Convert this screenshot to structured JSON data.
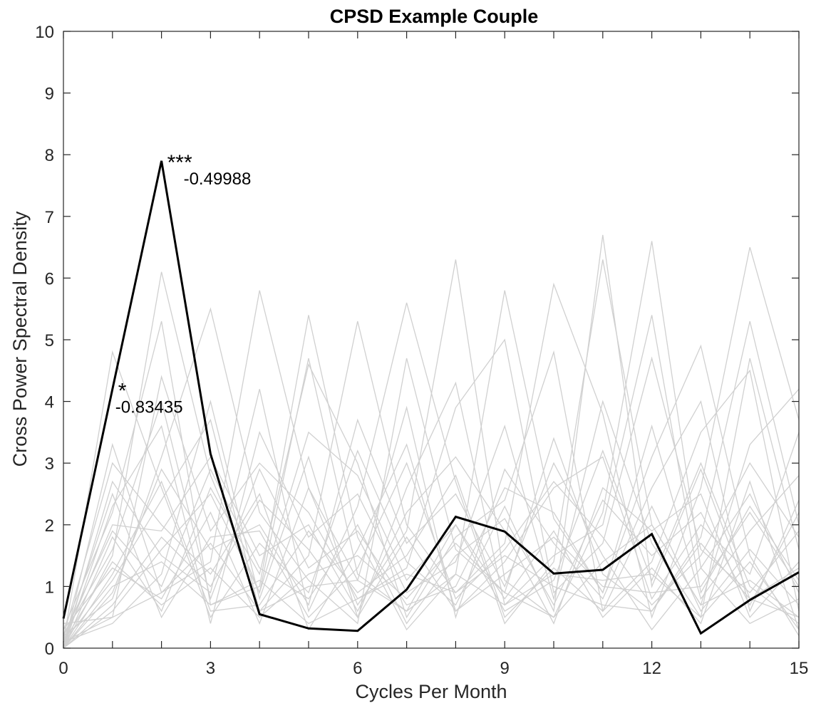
{
  "chart_data": {
    "type": "line",
    "title": "CPSD Example Couple",
    "xlabel": "Cycles Per Month",
    "ylabel": "Cross Power Spectral Density",
    "xlim": [
      0,
      15
    ],
    "ylim": [
      0,
      10
    ],
    "xticks": [
      "0",
      "3",
      "6",
      "9",
      "12",
      "15"
    ],
    "yticks": [
      "0",
      "1",
      "2",
      "3",
      "4",
      "5",
      "6",
      "7",
      "8",
      "9",
      "10"
    ],
    "grid": false,
    "colors": {
      "main": "#000000",
      "background_series": "#d0d0d0",
      "axis": "#262626"
    },
    "x": [
      0,
      1,
      2,
      3,
      4,
      5,
      6,
      7,
      8,
      9,
      10,
      11,
      12,
      13,
      14,
      15
    ],
    "series": [
      {
        "values": [
          0.48,
          4.2,
          7.9,
          3.15,
          0.55,
          0.32,
          0.28,
          0.95,
          2.13,
          1.89,
          1.21,
          1.27,
          1.85,
          0.24,
          0.78,
          1.23
        ]
      }
    ],
    "background_series": [
      [
        0.0,
        1.5,
        6.1,
        2.8,
        0.9,
        4.7,
        1.2,
        0.6,
        2.0,
        0.8,
        1.9,
        0.5,
        1.3,
        0.4,
        2.7,
        0.3
      ],
      [
        0.1,
        4.8,
        2.6,
        0.5,
        1.7,
        0.9,
        3.2,
        1.4,
        0.7,
        2.3,
        0.6,
        6.7,
        1.0,
        2.9,
        0.8,
        0.5
      ],
      [
        0.2,
        0.8,
        3.1,
        5.5,
        2.2,
        1.1,
        0.4,
        4.7,
        1.6,
        0.9,
        3.4,
        1.2,
        0.6,
        1.8,
        5.3,
        2.0
      ],
      [
        0.0,
        3.3,
        0.9,
        1.4,
        5.8,
        2.6,
        0.7,
        1.9,
        6.3,
        1.1,
        0.5,
        2.2,
        6.6,
        1.3,
        0.4,
        0.8
      ],
      [
        0.3,
        2.2,
        5.3,
        0.7,
        1.0,
        5.4,
        1.8,
        0.3,
        1.2,
        5.8,
        2.1,
        0.9,
        3.1,
        4.9,
        1.5,
        0.2
      ],
      [
        0.1,
        1.1,
        2.4,
        3.7,
        0.6,
        1.5,
        5.3,
        2.0,
        0.9,
        1.7,
        5.9,
        3.8,
        0.5,
        2.6,
        6.5,
        3.7
      ],
      [
        0.0,
        2.7,
        1.5,
        0.9,
        4.2,
        0.6,
        2.3,
        5.6,
        2.7,
        0.4,
        1.4,
        6.3,
        2.0,
        0.7,
        3.3,
        4.2
      ],
      [
        0.4,
        0.5,
        4.4,
        1.9,
        3.0,
        2.2,
        0.8,
        1.3,
        3.9,
        5.0,
        0.9,
        1.7,
        4.7,
        1.6,
        0.9,
        1.9
      ],
      [
        0.0,
        1.8,
        0.6,
        2.6,
        1.2,
        4.6,
        3.0,
        0.5,
        1.8,
        2.4,
        4.8,
        0.6,
        1.4,
        3.5,
        4.5,
        0.6
      ],
      [
        0.2,
        3.0,
        2.0,
        1.2,
        2.5,
        0.3,
        1.6,
        3.3,
        0.6,
        1.4,
        2.6,
        3.1,
        0.8,
        2.0,
        1.2,
        3.5
      ],
      [
        0.1,
        0.4,
        1.2,
        4.0,
        0.8,
        3.1,
        0.5,
        2.6,
        4.3,
        0.7,
        1.5,
        2.0,
        5.4,
        0.9,
        2.3,
        1.1
      ],
      [
        0.0,
        2.3,
        3.6,
        0.4,
        3.5,
        1.8,
        2.5,
        0.9,
        1.4,
        3.6,
        0.8,
        4.0,
        1.7,
        0.5,
        4.7,
        1.6
      ],
      [
        0.3,
        1.3,
        0.8,
        2.2,
        0.4,
        2.6,
        1.1,
        3.9,
        0.5,
        2.9,
        1.7,
        0.8,
        2.6,
        4.0,
        0.6,
        2.4
      ],
      [
        0.0,
        0.9,
        2.9,
        1.6,
        2.0,
        0.7,
        3.7,
        1.7,
        2.5,
        1.0,
        3.0,
        1.5,
        0.3,
        1.3,
        2.5,
        0.9
      ],
      [
        0.1,
        2.0,
        1.9,
        3.1,
        1.5,
        2.0,
        0.6,
        2.2,
        3.1,
        1.9,
        0.4,
        2.6,
        1.9,
        2.5,
        0.5,
        1.4
      ],
      [
        0.2,
        1.6,
        4.0,
        0.8,
        2.9,
        1.3,
        1.9,
        0.7,
        1.0,
        2.6,
        2.2,
        0.9,
        3.6,
        0.8,
        1.9,
        2.8
      ],
      [
        0.0,
        0.6,
        1.6,
        2.5,
        0.9,
        3.5,
        2.8,
        1.1,
        2.0,
        0.6,
        1.1,
        3.2,
        1.1,
        3.0,
        1.0,
        0.4
      ],
      [
        0.1,
        2.5,
        0.5,
        1.8,
        1.9,
        0.5,
        1.3,
        3.0,
        0.8,
        1.6,
        2.7,
        1.8,
        0.7,
        1.5,
        3.0,
        1.8
      ],
      [
        0.0,
        1.2,
        2.7,
        0.6,
        0.7,
        1.9,
        0.9,
        1.5,
        2.8,
        0.5,
        1.3,
        0.6,
        2.3,
        0.6,
        1.6,
        0.7
      ],
      [
        0.2,
        1.9,
        1.0,
        2.9,
        1.3,
        0.8,
        2.0,
        0.4,
        1.5,
        2.1,
        0.7,
        2.4,
        1.5,
        2.2,
        0.7,
        2.2
      ],
      [
        0.0,
        0.7,
        1.8,
        1.0,
        2.4,
        1.6,
        0.5,
        1.8,
        0.6,
        1.2,
        1.8,
        1.0,
        0.9,
        1.0,
        2.2,
        1.0
      ],
      [
        0.1,
        1.4,
        0.7,
        1.3,
        0.5,
        1.2,
        1.5,
        0.8,
        1.7,
        0.9,
        0.5,
        1.4,
        2.0,
        0.7,
        1.1,
        0.5
      ],
      [
        0.0,
        1.0,
        1.4,
        0.7,
        1.1,
        0.4,
        0.8,
        1.2,
        0.9,
        1.5,
        1.0,
        0.7,
        0.6,
        1.7,
        0.8,
        1.3
      ],
      [
        0.1,
        0.5,
        0.9,
        1.7,
        0.6,
        1.0,
        1.1,
        0.6,
        1.2,
        0.7,
        1.2,
        1.1,
        1.2,
        0.5,
        1.4,
        0.3
      ]
    ],
    "annotations": [
      {
        "marker": "***",
        "text": "-0.49988",
        "x": 2,
        "y": 7.9
      },
      {
        "marker": "*",
        "text": "-0.83435",
        "x": 1,
        "y": 4.2
      }
    ]
  }
}
